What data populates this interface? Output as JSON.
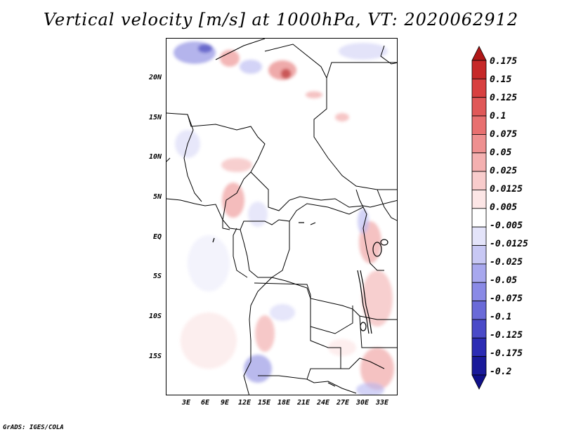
{
  "title": "Vertical velocity [m/s] at 1000hPa, VT: 2020062912",
  "footer": "GrADS: IGES/COLA",
  "map": {
    "latitude_labels": [
      "20N",
      "15N",
      "10N",
      "5N",
      "EQ",
      "5S",
      "10S",
      "15S"
    ],
    "longitude_labels": [
      "3E",
      "6E",
      "9E",
      "12E",
      "15E",
      "18E",
      "21E",
      "24E",
      "27E",
      "30E",
      "33E"
    ]
  },
  "colorbar": {
    "labels": [
      "0.175",
      "0.15",
      "0.125",
      "0.1",
      "0.075",
      "0.05",
      "0.025",
      "0.0125",
      "0.005",
      "-0.005",
      "-0.0125",
      "-0.025",
      "-0.05",
      "-0.075",
      "-0.1",
      "-0.125",
      "-0.175",
      "-0.2"
    ],
    "colors": [
      "#b01818",
      "#c62828",
      "#d84040",
      "#e05858",
      "#e87070",
      "#ee9090",
      "#f4b0b0",
      "#f8cccc",
      "#fce6e6",
      "#ffffff",
      "#e4e4fa",
      "#c8c8f4",
      "#a8a8ee",
      "#8a8ae6",
      "#6a6ad8",
      "#4a4ac8",
      "#2c2cb4",
      "#1a1a9a",
      "#10108a"
    ]
  }
}
